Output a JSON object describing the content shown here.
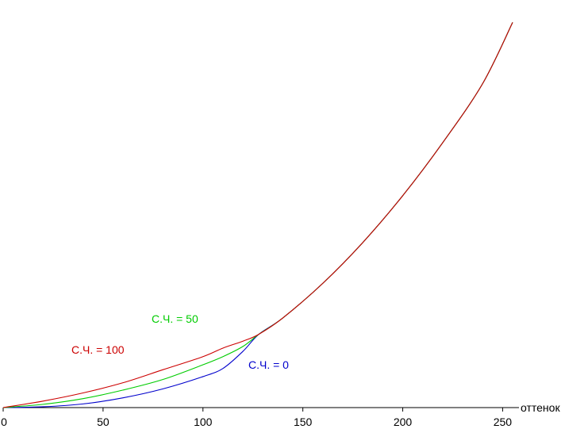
{
  "chart_data": {
    "type": "line",
    "xlabel": "оттенок",
    "ylabel": "",
    "xlim": [
      0,
      255
    ],
    "ylim": [
      0,
      1
    ],
    "x_ticks": [
      0,
      50,
      100,
      150,
      200,
      250
    ],
    "grid": false,
    "legend": "none",
    "series": [
      {
        "name": "С.Ч. = 0",
        "color": "#0000cc",
        "x": [
          0,
          20,
          40,
          60,
          80,
          100,
          110,
          120,
          128,
          140,
          160,
          180,
          200,
          220,
          240,
          255
        ],
        "y": [
          0.0,
          0.002,
          0.009,
          0.024,
          0.046,
          0.076,
          0.096,
          0.138,
          0.18,
          0.22,
          0.305,
          0.405,
          0.52,
          0.65,
          0.795,
          0.945
        ]
      },
      {
        "name": "С.Ч. = 50",
        "color": "#00cc00",
        "x": [
          0,
          20,
          40,
          60,
          80,
          100,
          110,
          120,
          128,
          140,
          160,
          180,
          200,
          220,
          240,
          255
        ],
        "y": [
          0.0,
          0.008,
          0.022,
          0.043,
          0.069,
          0.105,
          0.125,
          0.15,
          0.18,
          0.22,
          0.305,
          0.405,
          0.52,
          0.65,
          0.795,
          0.945
        ]
      },
      {
        "name": "С.Ч. = 100",
        "color": "#cc0000",
        "x": [
          0,
          20,
          40,
          60,
          80,
          100,
          110,
          120,
          128,
          140,
          160,
          180,
          200,
          220,
          240,
          255
        ],
        "y": [
          0.0,
          0.016,
          0.036,
          0.061,
          0.093,
          0.125,
          0.146,
          0.163,
          0.18,
          0.22,
          0.305,
          0.405,
          0.52,
          0.65,
          0.795,
          0.945
        ]
      }
    ]
  }
}
